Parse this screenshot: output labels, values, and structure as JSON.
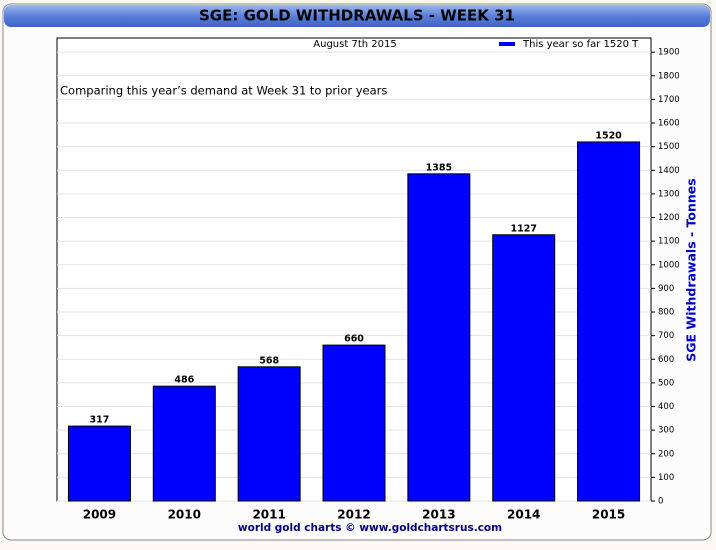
{
  "chart_data": {
    "type": "bar",
    "title": "SGE: GOLD WITHDRAWALS - WEEK 31",
    "subtitle": "August 7th 2015",
    "annotation": "Comparing this year’s demand at Week 31 to prior years",
    "y_label": "SGE Withdrawals - Tonnes",
    "source": "world gold charts © www.goldchartsrus.com",
    "categories": [
      "2009",
      "2010",
      "2011",
      "2012",
      "2013",
      "2014",
      "2015"
    ],
    "series": [
      {
        "name": "This year so far 1520 T",
        "color": "#0000ff",
        "values": [
          317,
          486,
          568,
          660,
          1385,
          1127,
          1520
        ]
      }
    ],
    "ylim": [
      0,
      1960
    ],
    "yticks": [
      0,
      100,
      200,
      300,
      400,
      500,
      600,
      700,
      800,
      900,
      1000,
      1100,
      1200,
      1300,
      1400,
      1500,
      1600,
      1700,
      1800,
      1900
    ],
    "grid": true,
    "legend": "top-right"
  }
}
